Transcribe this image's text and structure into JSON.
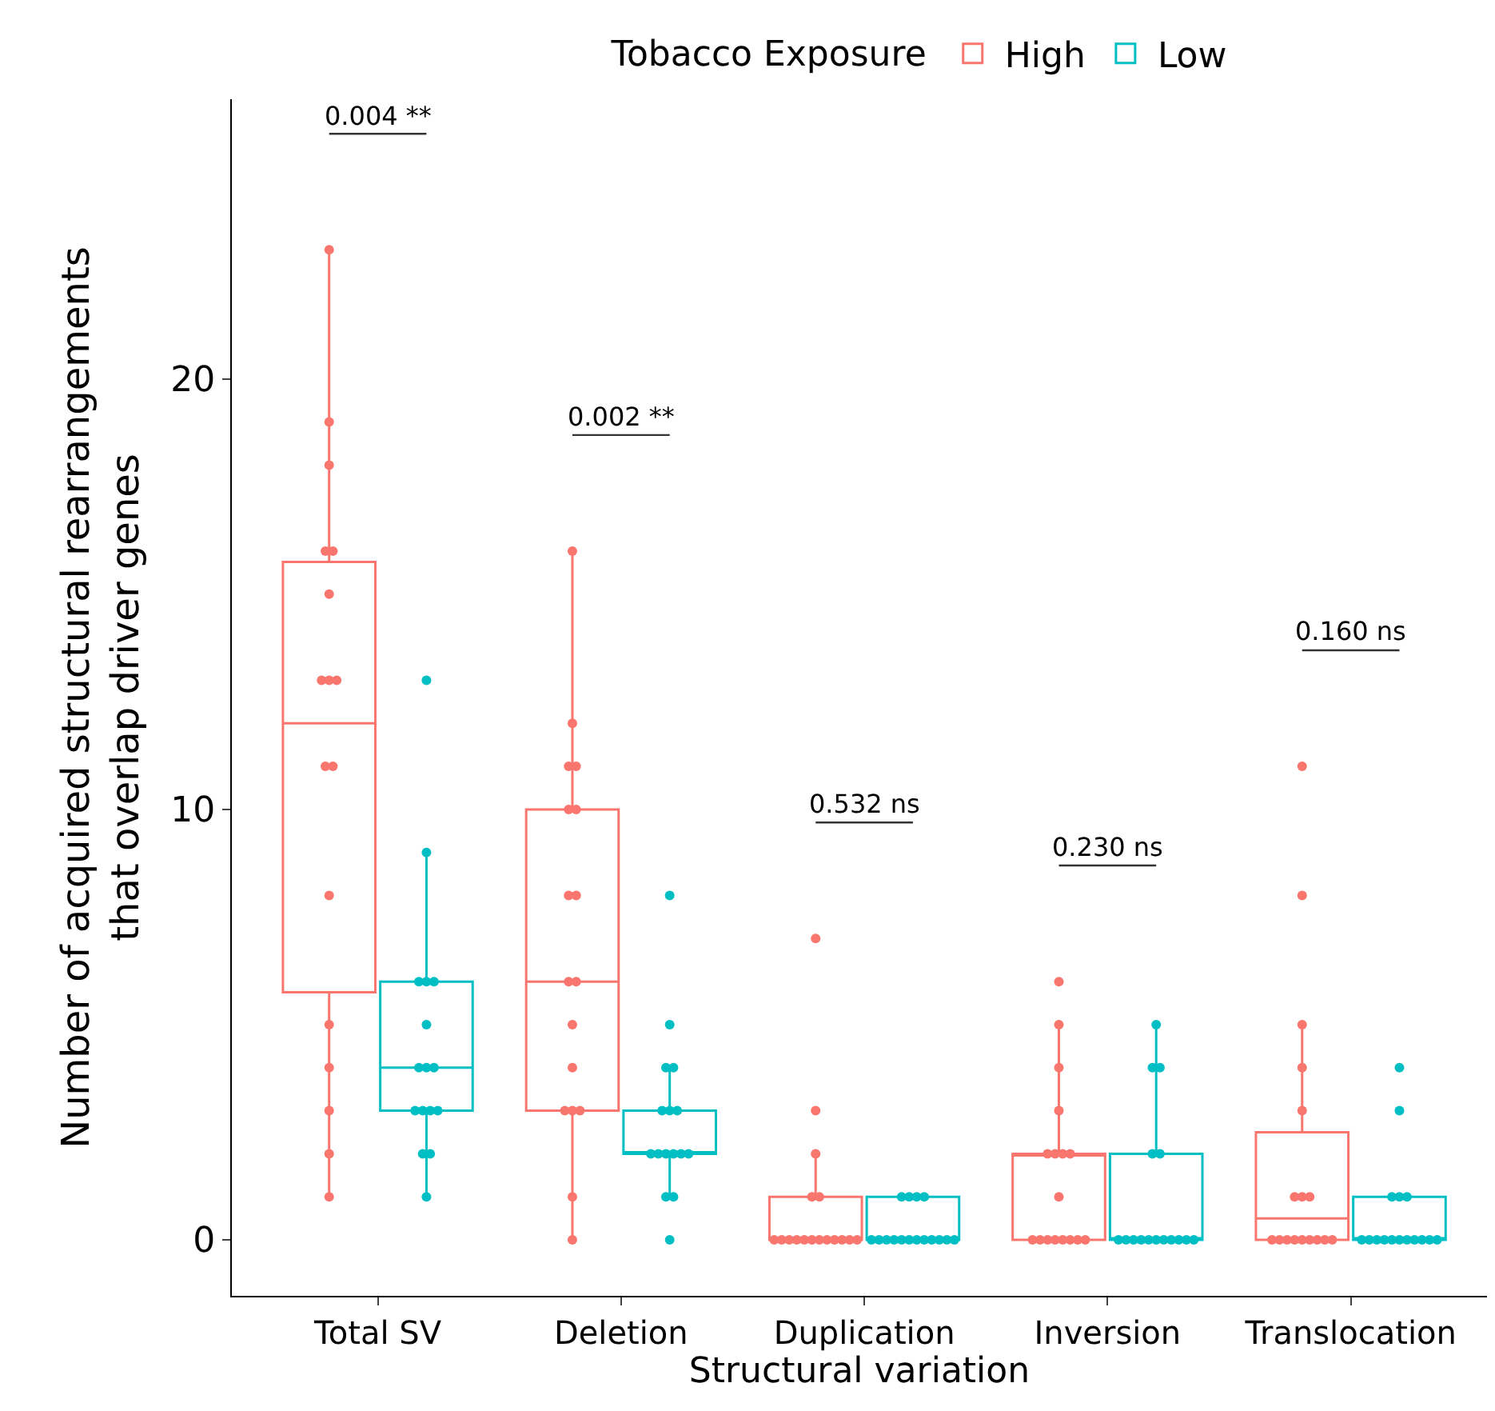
{
  "chart_data": {
    "type": "box",
    "xlabel": "Structural variation",
    "ylabel": "Number of acquired structural rearrangements\nthat overlap driver genes",
    "legend_title": "Tobacco Exposure",
    "categories": [
      "Total SV",
      "Deletion",
      "Duplication",
      "Inversion",
      "Translocation"
    ],
    "ylim": [
      -1.3,
      26.5
    ],
    "yticks": [
      0,
      10,
      20
    ],
    "grid": false,
    "legend": "top",
    "series": [
      {
        "name": "High",
        "color": "#f8766d",
        "boxes": [
          {
            "low": 1,
            "q1": 5.75,
            "median": 12,
            "q3": 15.75,
            "high": 23
          },
          {
            "low": 0,
            "q1": 3,
            "median": 6,
            "q3": 10,
            "high": 16
          },
          {
            "low": 0,
            "q1": 0,
            "median": 0,
            "q3": 1,
            "high": 2
          },
          {
            "low": 0,
            "q1": 0,
            "median": 2,
            "q3": 2,
            "high": 5
          },
          {
            "low": 0,
            "q1": 0,
            "median": 0.5,
            "q3": 2.5,
            "high": 5
          }
        ]
      },
      {
        "name": "Low",
        "color": "#00bfc4",
        "boxes": [
          {
            "low": 1,
            "q1": 3,
            "median": 4,
            "q3": 6,
            "high": 9
          },
          {
            "low": 1,
            "q1": 2,
            "median": 2,
            "q3": 3,
            "high": 4
          },
          {
            "low": 0,
            "q1": 0,
            "median": 0,
            "q3": 1,
            "high": 1
          },
          {
            "low": 0,
            "q1": 0,
            "median": 0,
            "q3": 2,
            "high": 5
          },
          {
            "low": 0,
            "q1": 0,
            "median": 0,
            "q3": 1,
            "high": 1
          }
        ]
      },
      {
        "type": "scatter",
        "color": "#f8766d",
        "marker": "circle",
        "x": [
          "Total SV",
          "Total SV",
          "Total SV",
          "Total SV",
          "Total SV",
          "Total SV",
          "Total SV",
          "Total SV",
          "Total SV",
          "Total SV",
          "Total SV",
          "Total SV",
          "Total SV",
          "Total SV",
          "Total SV",
          "Total SV",
          "Total SV",
          "Deletion",
          "Deletion",
          "Deletion",
          "Deletion",
          "Deletion",
          "Deletion",
          "Deletion",
          "Deletion",
          "Deletion",
          "Deletion",
          "Deletion",
          "Deletion",
          "Deletion",
          "Deletion",
          "Deletion",
          "Deletion",
          "Deletion",
          "Duplication",
          "Duplication",
          "Duplication",
          "Duplication",
          "Duplication",
          "Duplication",
          "Duplication",
          "Duplication",
          "Duplication",
          "Duplication",
          "Duplication",
          "Duplication",
          "Duplication",
          "Duplication",
          "Duplication",
          "Duplication",
          "Duplication",
          "Inversion",
          "Inversion",
          "Inversion",
          "Inversion",
          "Inversion",
          "Inversion",
          "Inversion",
          "Inversion",
          "Inversion",
          "Inversion",
          "Inversion",
          "Inversion",
          "Inversion",
          "Inversion",
          "Inversion",
          "Inversion",
          "Inversion",
          "Translocation",
          "Translocation",
          "Translocation",
          "Translocation",
          "Translocation",
          "Translocation",
          "Translocation",
          "Translocation",
          "Translocation",
          "Translocation",
          "Translocation",
          "Translocation",
          "Translocation",
          "Translocation",
          "Translocation",
          "Translocation",
          "Translocation"
        ],
        "values": [
          23,
          19,
          18,
          16,
          16,
          15,
          13,
          13,
          13,
          11,
          11,
          8,
          5,
          4,
          3,
          2,
          1,
          16,
          12,
          11,
          11,
          10,
          10,
          8,
          8,
          6,
          6,
          5,
          4,
          3,
          3,
          3,
          1,
          0,
          7,
          3,
          2,
          1,
          1,
          0,
          0,
          0,
          0,
          0,
          0,
          0,
          0,
          0,
          0,
          0,
          0,
          6,
          5,
          4,
          3,
          2,
          2,
          2,
          2,
          1,
          0,
          0,
          0,
          0,
          0,
          0,
          0,
          0,
          11,
          8,
          5,
          4,
          3,
          1,
          1,
          1,
          0,
          0,
          0,
          0,
          0,
          0,
          0,
          0,
          0
        ]
      },
      {
        "type": "scatter",
        "color": "#00bfc4",
        "marker": "circle",
        "x": [
          "Total SV",
          "Total SV",
          "Total SV",
          "Total SV",
          "Total SV",
          "Total SV",
          "Total SV",
          "Total SV",
          "Total SV",
          "Total SV",
          "Total SV",
          "Total SV",
          "Total SV",
          "Total SV",
          "Total SV",
          "Total SV",
          "Deletion",
          "Deletion",
          "Deletion",
          "Deletion",
          "Deletion",
          "Deletion",
          "Deletion",
          "Deletion",
          "Deletion",
          "Deletion",
          "Deletion",
          "Deletion",
          "Deletion",
          "Deletion",
          "Deletion",
          "Deletion",
          "Duplication",
          "Duplication",
          "Duplication",
          "Duplication",
          "Duplication",
          "Duplication",
          "Duplication",
          "Duplication",
          "Duplication",
          "Duplication",
          "Duplication",
          "Duplication",
          "Duplication",
          "Duplication",
          "Duplication",
          "Duplication",
          "Inversion",
          "Inversion",
          "Inversion",
          "Inversion",
          "Inversion",
          "Inversion",
          "Inversion",
          "Inversion",
          "Inversion",
          "Inversion",
          "Inversion",
          "Inversion",
          "Inversion",
          "Inversion",
          "Inversion",
          "Inversion",
          "Translocation",
          "Translocation",
          "Translocation",
          "Translocation",
          "Translocation",
          "Translocation",
          "Translocation",
          "Translocation",
          "Translocation",
          "Translocation",
          "Translocation",
          "Translocation",
          "Translocation",
          "Translocation",
          "Translocation",
          "Translocation"
        ],
        "values": [
          13,
          9,
          6,
          6,
          6,
          5,
          4,
          4,
          4,
          3,
          3,
          3,
          3,
          2,
          2,
          1,
          8,
          5,
          4,
          4,
          3,
          3,
          3,
          2,
          2,
          2,
          2,
          2,
          2,
          1,
          1,
          0,
          1,
          1,
          1,
          1,
          0,
          0,
          0,
          0,
          0,
          0,
          0,
          0,
          0,
          0,
          0,
          0,
          5,
          4,
          4,
          2,
          2,
          0,
          0,
          0,
          0,
          0,
          0,
          0,
          0,
          0,
          0,
          0,
          4,
          3,
          1,
          1,
          1,
          0,
          0,
          0,
          0,
          0,
          0,
          0,
          0,
          0,
          0,
          0
        ]
      }
    ],
    "annotations": [
      "0.004 **",
      "0.002 **",
      "0.532 ns",
      "0.230 ns",
      "0.160 ns"
    ]
  }
}
